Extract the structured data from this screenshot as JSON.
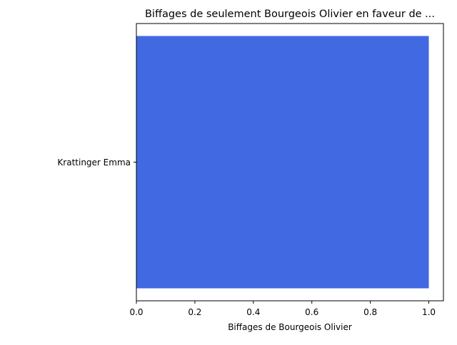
{
  "chart_data": {
    "type": "bar",
    "orientation": "horizontal",
    "title": "Biffages de seulement Bourgeois Olivier en faveur de ...",
    "xlabel": "Biffages de Bourgeois Olivier",
    "ylabel": "",
    "categories": [
      "Krattinger Emma"
    ],
    "values": [
      1
    ],
    "xlim": [
      0,
      1.05
    ],
    "xticks": [
      "0.0",
      "0.2",
      "0.4",
      "0.6",
      "0.8",
      "1.0"
    ],
    "grid": false,
    "legend": "none",
    "bar_color": "#4169e1"
  }
}
